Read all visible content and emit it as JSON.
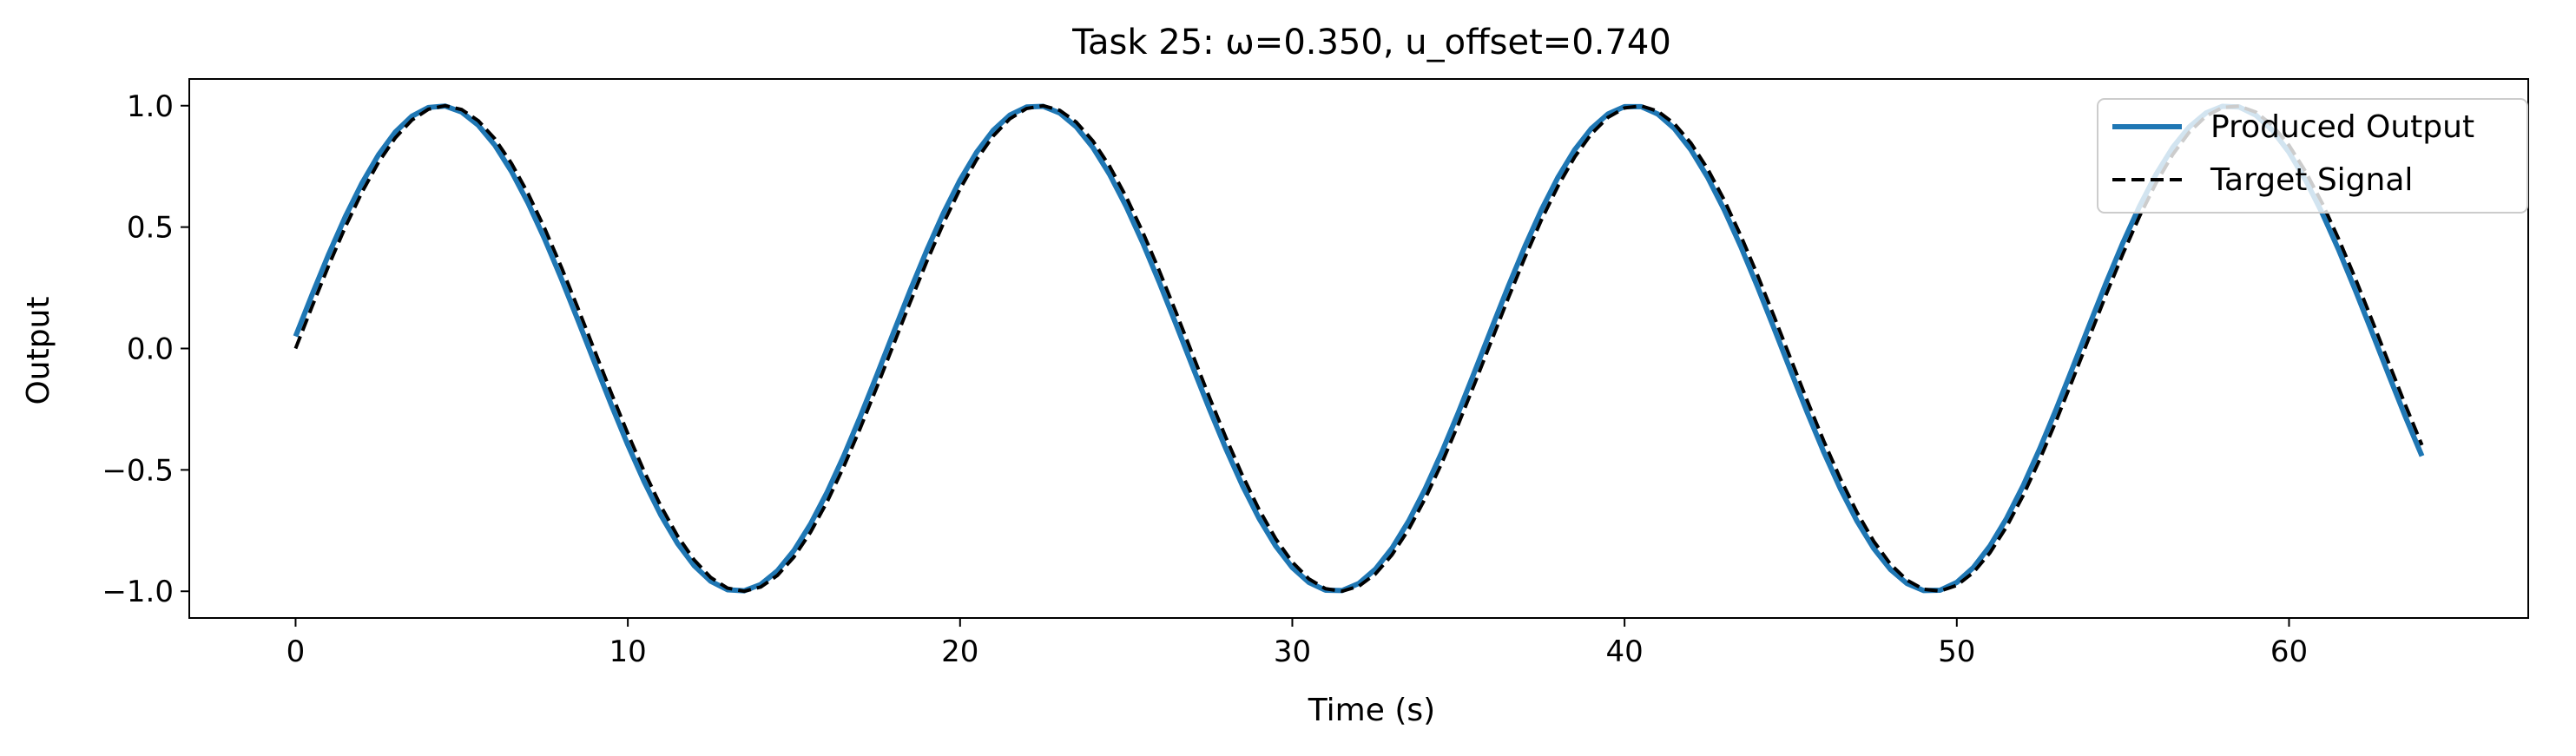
{
  "chart_data": {
    "type": "line",
    "title": "Task 25: ω=0.350, u_offset=0.740",
    "xlabel": "Time (s)",
    "ylabel": "Output",
    "xlim": [
      -3.2,
      67.2
    ],
    "ylim": [
      -1.11,
      1.11
    ],
    "xticks": [
      0,
      10,
      20,
      30,
      40,
      50,
      60
    ],
    "xtick_labels": [
      "0",
      "10",
      "20",
      "30",
      "40",
      "50",
      "60"
    ],
    "yticks": [
      -1.0,
      -0.5,
      0.0,
      0.5,
      1.0
    ],
    "ytick_labels": [
      "−1.0",
      "−0.5",
      "0.0",
      "0.5",
      "1.0"
    ],
    "grid": false,
    "legend_position": "top-right",
    "x_range": [
      0,
      64
    ],
    "sample_step": 0.5,
    "series": [
      {
        "name": "Produced Output",
        "color": "#1f77b4",
        "style": "solid",
        "function": "sin",
        "omega": 0.35,
        "amplitude": 1.0,
        "phase_shift": 0.05
      },
      {
        "name": "Target Signal",
        "color": "#000000",
        "style": "dashed",
        "function": "sin",
        "omega": 0.35,
        "amplitude": 1.0,
        "phase_shift": 0.0
      }
    ]
  }
}
